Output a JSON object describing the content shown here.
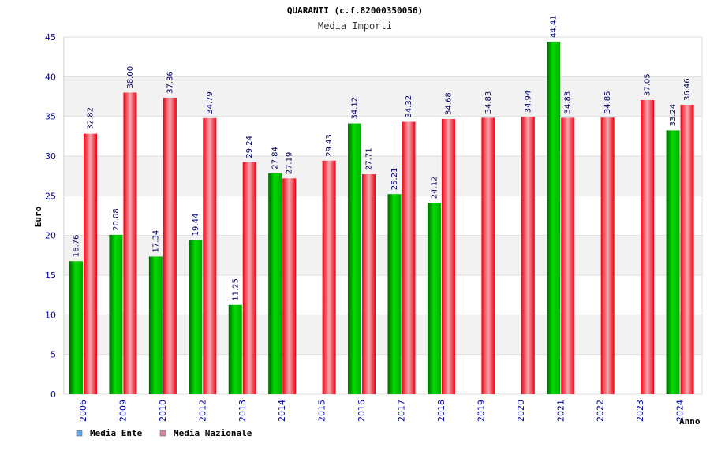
{
  "chart_data": {
    "type": "bar",
    "title": "QUARANTI (c.f.82000350056)",
    "subtitle": "Media Importi",
    "ylabel": "Euro",
    "xlabel": "Anno",
    "ylim": [
      0,
      45
    ],
    "yticks": [
      0,
      5,
      10,
      15,
      20,
      25,
      30,
      35,
      40,
      45
    ],
    "grid": true,
    "legend_position": "bottom-left",
    "categories": [
      "2006",
      "2009",
      "2010",
      "2012",
      "2013",
      "2014",
      "2015",
      "2016",
      "2017",
      "2018",
      "2019",
      "2020",
      "2021",
      "2022",
      "2023",
      "2024"
    ],
    "series": [
      {
        "name": "Media Ente",
        "color": "#00aa00",
        "legend_color": "#66aaee",
        "values": [
          16.76,
          20.08,
          17.34,
          19.44,
          11.25,
          27.84,
          null,
          34.12,
          25.21,
          24.12,
          null,
          null,
          44.41,
          null,
          null,
          33.24
        ],
        "labels": [
          "16.76",
          "20.08",
          "17.34",
          "19.44",
          "11.25",
          "27.84",
          null,
          "34.12",
          "25.21",
          "24.12",
          null,
          null,
          "44.41",
          null,
          null,
          "33.24"
        ]
      },
      {
        "name": "Media Nazionale",
        "color": "#ee2233",
        "legend_color": "#dd88aa",
        "values": [
          32.82,
          38.0,
          37.36,
          34.79,
          29.24,
          27.19,
          29.43,
          27.71,
          34.32,
          34.68,
          34.83,
          34.94,
          34.83,
          34.85,
          37.05,
          36.46
        ],
        "labels": [
          "32.82",
          "38.00",
          "37.36",
          "34.79",
          "29.24",
          "27.19",
          "29.43",
          "27.71",
          "34.32",
          "34.68",
          "34.83",
          "34.94",
          "34.83",
          "34.85",
          "37.05",
          "36.46"
        ]
      }
    ]
  }
}
